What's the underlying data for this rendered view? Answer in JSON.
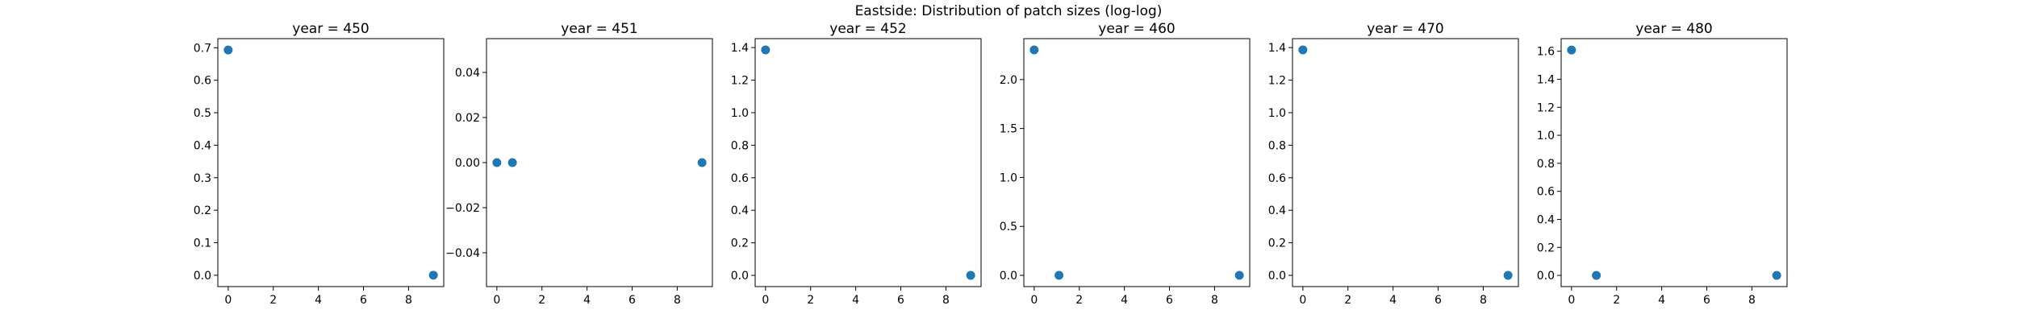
{
  "suptitle": "Eastside: Distribution of patch sizes (log-log)",
  "colors": {
    "marker": "#1f77b4",
    "axis": "#000000",
    "background": "#ffffff"
  },
  "chart_data": [
    {
      "type": "scatter",
      "title": "year = 450",
      "x": [
        0,
        9.1
      ],
      "y": [
        0.693,
        0.0
      ],
      "xlim": [
        -0.46,
        9.56
      ],
      "ylim": [
        -0.035,
        0.728
      ],
      "xticks": [
        0,
        2,
        4,
        6,
        8
      ],
      "yticks": [
        0.0,
        0.1,
        0.2,
        0.3,
        0.4,
        0.5,
        0.6,
        0.7
      ],
      "ytick_labels": [
        "0.0",
        "0.1",
        "0.2",
        "0.3",
        "0.4",
        "0.5",
        "0.6",
        "0.7"
      ],
      "grid": false
    },
    {
      "type": "scatter",
      "title": "year = 451",
      "x": [
        0,
        0.69,
        9.1
      ],
      "y": [
        0,
        0,
        0
      ],
      "xlim": [
        -0.46,
        9.56
      ],
      "ylim": [
        -0.055,
        0.055
      ],
      "xticks": [
        0,
        2,
        4,
        6,
        8
      ],
      "yticks": [
        -0.04,
        -0.02,
        0.0,
        0.02,
        0.04
      ],
      "ytick_labels": [
        "−0.04",
        "−0.02",
        "0.00",
        "0.02",
        "0.04"
      ],
      "grid": false
    },
    {
      "type": "scatter",
      "title": "year = 452",
      "x": [
        0,
        9.1
      ],
      "y": [
        1.386,
        0.0
      ],
      "xlim": [
        -0.46,
        9.56
      ],
      "ylim": [
        -0.069,
        1.455
      ],
      "xticks": [
        0,
        2,
        4,
        6,
        8
      ],
      "yticks": [
        0.0,
        0.2,
        0.4,
        0.6,
        0.8,
        1.0,
        1.2,
        1.4
      ],
      "ytick_labels": [
        "0.0",
        "0.2",
        "0.4",
        "0.6",
        "0.8",
        "1.0",
        "1.2",
        "1.4"
      ],
      "grid": false
    },
    {
      "type": "scatter",
      "title": "year = 460",
      "x": [
        0,
        1.1,
        9.1
      ],
      "y": [
        2.303,
        0.0,
        0.0
      ],
      "xlim": [
        -0.46,
        9.56
      ],
      "ylim": [
        -0.115,
        2.418
      ],
      "xticks": [
        0,
        2,
        4,
        6,
        8
      ],
      "yticks": [
        0.0,
        0.5,
        1.0,
        1.5,
        2.0
      ],
      "ytick_labels": [
        "0.0",
        "0.5",
        "1.0",
        "1.5",
        "2.0"
      ],
      "grid": false
    },
    {
      "type": "scatter",
      "title": "year = 470",
      "x": [
        0,
        9.1
      ],
      "y": [
        1.386,
        0.0
      ],
      "xlim": [
        -0.46,
        9.56
      ],
      "ylim": [
        -0.069,
        1.455
      ],
      "xticks": [
        0,
        2,
        4,
        6,
        8
      ],
      "yticks": [
        0.0,
        0.2,
        0.4,
        0.6,
        0.8,
        1.0,
        1.2,
        1.4
      ],
      "ytick_labels": [
        "0.0",
        "0.2",
        "0.4",
        "0.6",
        "0.8",
        "1.0",
        "1.2",
        "1.4"
      ],
      "grid": false
    },
    {
      "type": "scatter",
      "title": "year = 480",
      "x": [
        0,
        1.1,
        9.1
      ],
      "y": [
        1.609,
        0.0,
        0.0
      ],
      "xlim": [
        -0.46,
        9.56
      ],
      "ylim": [
        -0.08,
        1.69
      ],
      "xticks": [
        0,
        2,
        4,
        6,
        8
      ],
      "yticks": [
        0.0,
        0.2,
        0.4,
        0.6,
        0.8,
        1.0,
        1.2,
        1.4,
        1.6
      ],
      "ytick_labels": [
        "0.0",
        "0.2",
        "0.4",
        "0.6",
        "0.8",
        "1.0",
        "1.2",
        "1.4",
        "1.6"
      ],
      "grid": false
    }
  ]
}
